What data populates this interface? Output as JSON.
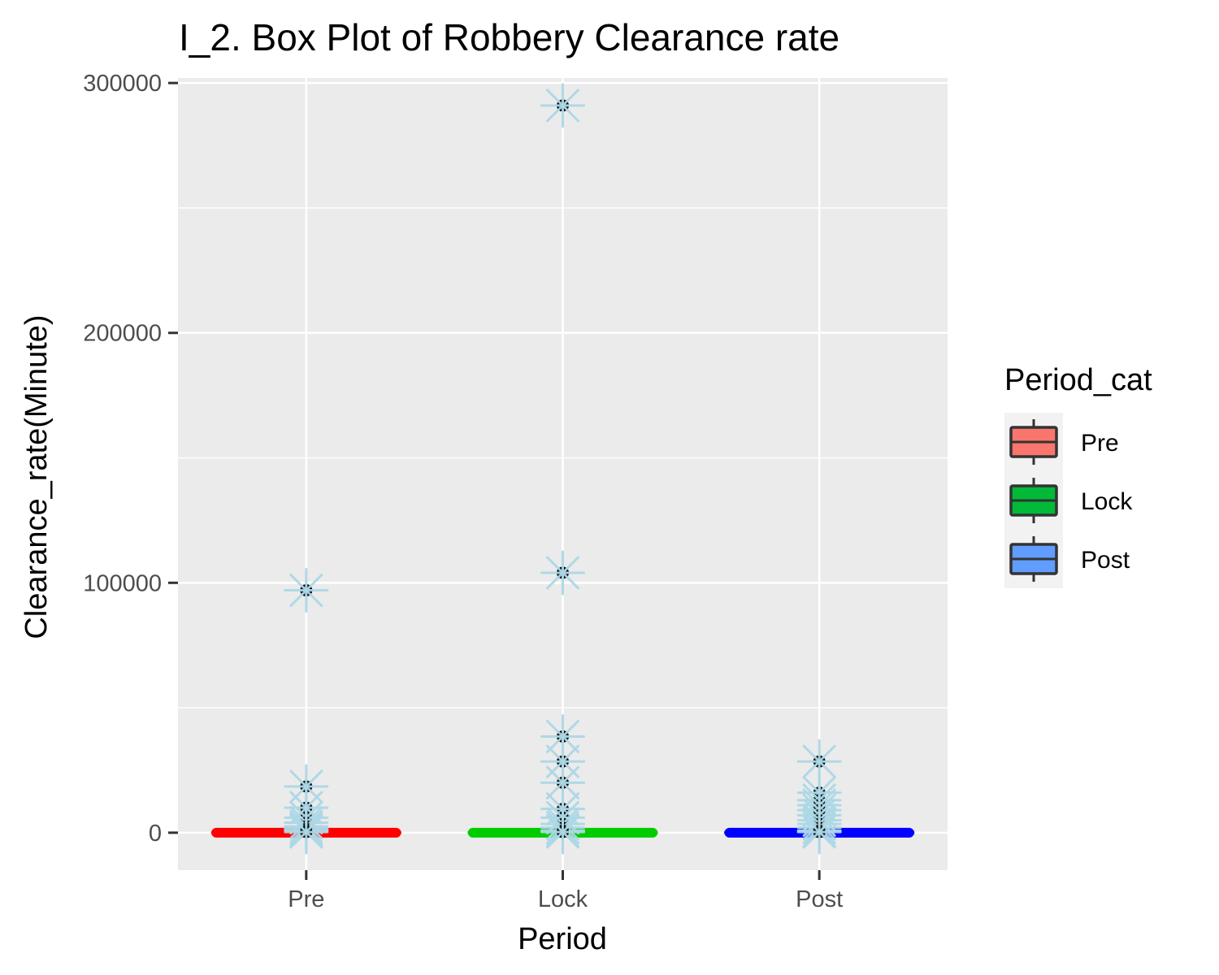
{
  "chart_data": {
    "type": "box",
    "title": "I_2. Box Plot of Robbery Clearance rate",
    "xlabel": "Period",
    "ylabel": "Clearance_rate(Minute)",
    "categories": [
      "Pre",
      "Lock",
      "Post"
    ],
    "ylim": [
      -15000,
      302000
    ],
    "yticks": [
      0,
      100000,
      200000,
      300000
    ],
    "y_minor_gridlines": [
      50000,
      150000,
      250000
    ],
    "grid": true,
    "legend": {
      "title": "Period_cat",
      "placement": "right",
      "entries": [
        "Pre",
        "Lock",
        "Post"
      ]
    },
    "series": [
      {
        "name": "Pre",
        "fill": "#F8766D",
        "line_color": "#FF0000",
        "box": {
          "q1": 0,
          "median": 0,
          "q3": 0,
          "whisker_low": 0,
          "whisker_high": 0
        },
        "outliers": [
          97000,
          18500,
          10000,
          6000,
          4000,
          2500,
          1500,
          800,
          300
        ]
      },
      {
        "name": "Lock",
        "fill": "#00BA38",
        "line_color": "#00CC00",
        "box": {
          "q1": 0,
          "median": 0,
          "q3": 0,
          "whisker_low": 0,
          "whisker_high": 0
        },
        "outliers": [
          291000,
          104000,
          38500,
          28500,
          20000,
          9500,
          6000,
          3500,
          2000,
          800,
          300
        ]
      },
      {
        "name": "Post",
        "fill": "#619CFF",
        "line_color": "#0000FF",
        "box": {
          "q1": 0,
          "median": 0,
          "q3": 0,
          "whisker_low": 0,
          "whisker_high": 0
        },
        "outliers": [
          28500,
          16000,
          13000,
          11000,
          9000,
          7000,
          5000,
          3500,
          2000,
          800,
          300
        ]
      }
    ],
    "colors": {
      "panel_background": "#EBEBEB",
      "grid": "#FFFFFF",
      "outlier_star": "#ADD8E6",
      "outlier_point": "#000000",
      "legend_key_background": "#F2F2F2",
      "box_outline": "#333333"
    }
  }
}
